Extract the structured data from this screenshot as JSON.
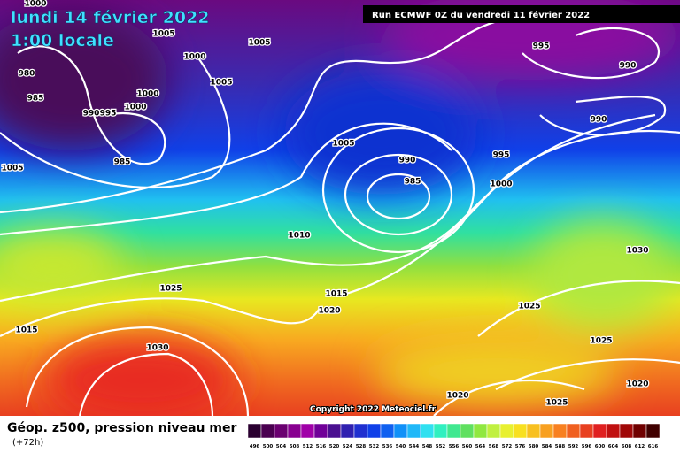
{
  "header": {
    "date": "lundi 14 février 2022",
    "time": "1:00 locale",
    "run": "Run ECMWF 0Z du vendredi 11 février 2022"
  },
  "footer": {
    "title": "Géop. z500, pression niveau mer",
    "lead": "(+72h)",
    "copyright": "Copyright 2022 Meteociel.fr"
  },
  "isobar_labels": [
    1005,
    1005,
    1000,
    1005,
    1000,
    1000,
    990,
    995,
    980,
    985,
    985,
    1005,
    1005,
    990,
    985,
    995,
    1000,
    995,
    990,
    990,
    1010,
    1030,
    1025,
    1015,
    1020,
    1025,
    1015,
    1030,
    1025,
    1020,
    1020,
    1025,
    1000
  ],
  "colorbar": {
    "labels": [
      496,
      500,
      504,
      508,
      512,
      516,
      520,
      524,
      528,
      532,
      536,
      540,
      544,
      548,
      552,
      556,
      560,
      564,
      568,
      572,
      576,
      580,
      584,
      588,
      592,
      596,
      600,
      604,
      608,
      612,
      616
    ],
    "colors": [
      "#2a0030",
      "#4a0050",
      "#6a0070",
      "#880090",
      "#a000a8",
      "#700098",
      "#4a1090",
      "#3020b0",
      "#2030d0",
      "#1040e8",
      "#1060f0",
      "#1090f8",
      "#20b8f8",
      "#30e0f0",
      "#30f0c0",
      "#40e890",
      "#60e060",
      "#90e840",
      "#c0f040",
      "#e8f030",
      "#f8e020",
      "#f8c020",
      "#f8a020",
      "#f88020",
      "#f06020",
      "#e84020",
      "#e02020",
      "#c01010",
      "#a00808",
      "#700000",
      "#400000"
    ]
  }
}
